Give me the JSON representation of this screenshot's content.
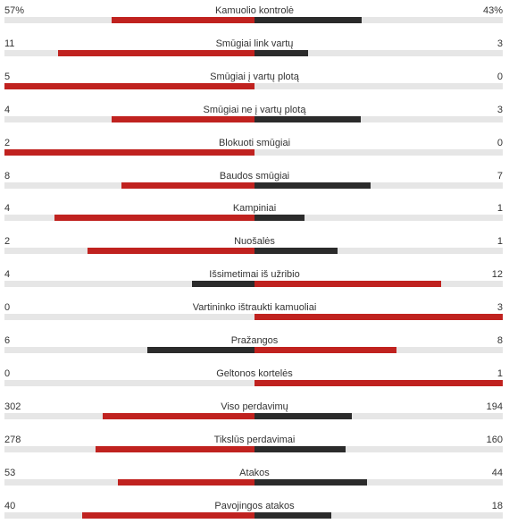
{
  "stats": [
    {
      "label": "Kamuolio kontrolė",
      "home": "57%",
      "away": "43%",
      "home_value": 57,
      "away_value": 43
    },
    {
      "label": "Smūgiai link vartų",
      "home": "11",
      "away": "3",
      "home_value": 11,
      "away_value": 3
    },
    {
      "label": "Smūgiai į vartų plotą",
      "home": "5",
      "away": "0",
      "home_value": 5,
      "away_value": 0
    },
    {
      "label": "Smūgiai ne į vartų plotą",
      "home": "4",
      "away": "3",
      "home_value": 4,
      "away_value": 3
    },
    {
      "label": "Blokuoti smūgiai",
      "home": "2",
      "away": "0",
      "home_value": 2,
      "away_value": 0
    },
    {
      "label": "Baudos smūgiai",
      "home": "8",
      "away": "7",
      "home_value": 8,
      "away_value": 7
    },
    {
      "label": "Kampiniai",
      "home": "4",
      "away": "1",
      "home_value": 4,
      "away_value": 1
    },
    {
      "label": "Nuošalės",
      "home": "2",
      "away": "1",
      "home_value": 2,
      "away_value": 1
    },
    {
      "label": "Išsimetimai iš užribio",
      "home": "4",
      "away": "12",
      "home_value": 4,
      "away_value": 12
    },
    {
      "label": "Vartininko ištraukti kamuoliai",
      "home": "0",
      "away": "3",
      "home_value": 0,
      "away_value": 3
    },
    {
      "label": "Pražangos",
      "home": "6",
      "away": "8",
      "home_value": 6,
      "away_value": 8
    },
    {
      "label": "Geltonos kortelės",
      "home": "0",
      "away": "1",
      "home_value": 0,
      "away_value": 1
    },
    {
      "label": "Viso perdavimų",
      "home": "302",
      "away": "194",
      "home_value": 302,
      "away_value": 194
    },
    {
      "label": "Tikslūs perdavimai",
      "home": "278",
      "away": "160",
      "home_value": 278,
      "away_value": 160
    },
    {
      "label": "Atakos",
      "home": "53",
      "away": "44",
      "home_value": 53,
      "away_value": 44
    },
    {
      "label": "Pavojingos atakos",
      "home": "40",
      "away": "18",
      "home_value": 40,
      "away_value": 18
    }
  ],
  "colors": {
    "leading_bar": "#c0221f",
    "trailing_bar": "#2b2b2b",
    "track": "#e6e6e6"
  }
}
